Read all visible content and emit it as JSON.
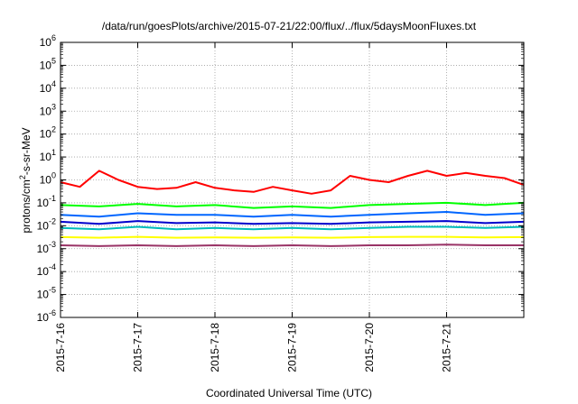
{
  "chart_data": {
    "type": "line",
    "title": "/data/run/goesPlots/archive/2015-07-21/22:00/flux/../flux/5daysMoonFluxes.txt",
    "xlabel": "Coordinated Universal Time (UTC)",
    "ylabel_main": "protons/cm",
    "ylabel_sup": "2",
    "ylabel_tail": "-s-sr-MeV",
    "yscale": "log",
    "ylim": [
      1e-06,
      1000000.0
    ],
    "xlim": [
      "2015-07-16",
      "2015-07-22"
    ],
    "grid": true,
    "legend": "none",
    "x_ticks": [
      "2015-7-16",
      "2015-7-17",
      "2015-7-18",
      "2015-7-19",
      "2015-7-20",
      "2015-7-21"
    ],
    "y_ticks": [
      {
        "base": "10",
        "exp": "6"
      },
      {
        "base": "10",
        "exp": "5"
      },
      {
        "base": "10",
        "exp": "4"
      },
      {
        "base": "10",
        "exp": "3"
      },
      {
        "base": "10",
        "exp": "2"
      },
      {
        "base": "10",
        "exp": "1"
      },
      {
        "base": "10",
        "exp": "0"
      },
      {
        "base": "10",
        "exp": "-1"
      },
      {
        "base": "10",
        "exp": "-2"
      },
      {
        "base": "10",
        "exp": "-3"
      },
      {
        "base": "10",
        "exp": "-4"
      },
      {
        "base": "10",
        "exp": "-5"
      },
      {
        "base": "10",
        "exp": "-6"
      }
    ],
    "series": [
      {
        "color": "#ff0000",
        "x": [
          "2015-07-16 00:00",
          "2015-07-16 06:00",
          "2015-07-16 12:00",
          "2015-07-16 18:00",
          "2015-07-17 00:00",
          "2015-07-17 06:00",
          "2015-07-17 12:00",
          "2015-07-17 18:00",
          "2015-07-18 00:00",
          "2015-07-18 06:00",
          "2015-07-18 12:00",
          "2015-07-18 18:00",
          "2015-07-19 00:00",
          "2015-07-19 06:00",
          "2015-07-19 12:00",
          "2015-07-19 18:00",
          "2015-07-20 00:00",
          "2015-07-20 06:00",
          "2015-07-20 12:00",
          "2015-07-20 18:00",
          "2015-07-21 00:00",
          "2015-07-21 06:00",
          "2015-07-21 12:00",
          "2015-07-21 18:00",
          "2015-07-22 00:00"
        ],
        "y": [
          0.8,
          0.5,
          2.5,
          1.0,
          0.5,
          0.4,
          0.45,
          0.8,
          0.45,
          0.35,
          0.3,
          0.5,
          0.35,
          0.25,
          0.35,
          1.5,
          1.0,
          0.8,
          1.5,
          2.5,
          1.5,
          2.0,
          1.5,
          1.2,
          0.6
        ]
      },
      {
        "color": "#00ff00",
        "x": [
          "2015-07-16 00:00",
          "2015-07-16 12:00",
          "2015-07-17 00:00",
          "2015-07-17 12:00",
          "2015-07-18 00:00",
          "2015-07-18 12:00",
          "2015-07-19 00:00",
          "2015-07-19 12:00",
          "2015-07-20 00:00",
          "2015-07-20 12:00",
          "2015-07-21 00:00",
          "2015-07-21 12:00",
          "2015-07-22 00:00"
        ],
        "y": [
          0.08,
          0.07,
          0.09,
          0.07,
          0.08,
          0.06,
          0.07,
          0.06,
          0.08,
          0.09,
          0.1,
          0.08,
          0.1
        ]
      },
      {
        "color": "#0066ff",
        "x": [
          "2015-07-16 00:00",
          "2015-07-16 12:00",
          "2015-07-17 00:00",
          "2015-07-17 12:00",
          "2015-07-18 00:00",
          "2015-07-18 12:00",
          "2015-07-19 00:00",
          "2015-07-19 12:00",
          "2015-07-20 00:00",
          "2015-07-20 12:00",
          "2015-07-21 00:00",
          "2015-07-21 12:00",
          "2015-07-22 00:00"
        ],
        "y": [
          0.03,
          0.025,
          0.035,
          0.03,
          0.03,
          0.025,
          0.03,
          0.025,
          0.03,
          0.035,
          0.04,
          0.03,
          0.035
        ]
      },
      {
        "color": "#0000cc",
        "x": [
          "2015-07-16 00:00",
          "2015-07-16 12:00",
          "2015-07-17 00:00",
          "2015-07-17 12:00",
          "2015-07-18 00:00",
          "2015-07-18 12:00",
          "2015-07-19 00:00",
          "2015-07-19 12:00",
          "2015-07-20 00:00",
          "2015-07-20 12:00",
          "2015-07-21 00:00",
          "2015-07-21 12:00",
          "2015-07-22 00:00"
        ],
        "y": [
          0.015,
          0.012,
          0.016,
          0.013,
          0.014,
          0.012,
          0.013,
          0.012,
          0.014,
          0.015,
          0.016,
          0.013,
          0.015
        ]
      },
      {
        "color": "#00bbbb",
        "x": [
          "2015-07-16 00:00",
          "2015-07-16 12:00",
          "2015-07-17 00:00",
          "2015-07-17 12:00",
          "2015-07-18 00:00",
          "2015-07-18 12:00",
          "2015-07-19 00:00",
          "2015-07-19 12:00",
          "2015-07-20 00:00",
          "2015-07-20 12:00",
          "2015-07-21 00:00",
          "2015-07-21 12:00",
          "2015-07-22 00:00"
        ],
        "y": [
          0.008,
          0.007,
          0.009,
          0.007,
          0.008,
          0.007,
          0.008,
          0.007,
          0.008,
          0.009,
          0.009,
          0.008,
          0.009
        ]
      },
      {
        "color": "#ffff00",
        "x": [
          "2015-07-16 00:00",
          "2015-07-16 12:00",
          "2015-07-17 00:00",
          "2015-07-17 12:00",
          "2015-07-18 00:00",
          "2015-07-18 12:00",
          "2015-07-19 00:00",
          "2015-07-19 12:00",
          "2015-07-20 00:00",
          "2015-07-20 12:00",
          "2015-07-21 00:00",
          "2015-07-21 12:00",
          "2015-07-22 00:00"
        ],
        "y": [
          0.0032,
          0.003,
          0.0033,
          0.003,
          0.0031,
          0.003,
          0.0031,
          0.003,
          0.0032,
          0.0033,
          0.0033,
          0.0031,
          0.0032
        ]
      },
      {
        "color": "#993366",
        "x": [
          "2015-07-16 00:00",
          "2015-07-16 12:00",
          "2015-07-17 00:00",
          "2015-07-17 12:00",
          "2015-07-18 00:00",
          "2015-07-18 12:00",
          "2015-07-19 00:00",
          "2015-07-19 12:00",
          "2015-07-20 00:00",
          "2015-07-20 12:00",
          "2015-07-21 00:00",
          "2015-07-21 12:00",
          "2015-07-22 00:00"
        ],
        "y": [
          0.0014,
          0.0013,
          0.0014,
          0.0013,
          0.0014,
          0.0013,
          0.0014,
          0.0013,
          0.0014,
          0.0014,
          0.0015,
          0.0014,
          0.0014
        ]
      }
    ]
  }
}
